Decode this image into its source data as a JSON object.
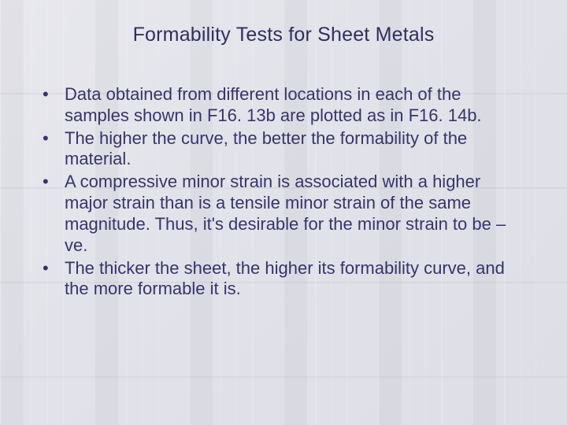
{
  "slide": {
    "background_color": "#e4e4ec",
    "text_color": "#35356a",
    "title": {
      "text": "Formability Tests for Sheet Metals",
      "fontsize": 25,
      "color": "#2f2f5f"
    },
    "bullets": {
      "fontsize": 22,
      "color": "#35356a",
      "items": [
        "Data obtained from different locations in each of the samples shown in F16. 13b are plotted as in F16. 14b.",
        "The higher the curve, the better the formability of the material.",
        "A compressive minor strain is associated with a higher major strain than is a tensile minor strain of the same magnitude. Thus, it's desirable for the minor strain to be –ve.",
        "The thicker the sheet, the higher its formability curve, and the more formable it is."
      ]
    }
  }
}
